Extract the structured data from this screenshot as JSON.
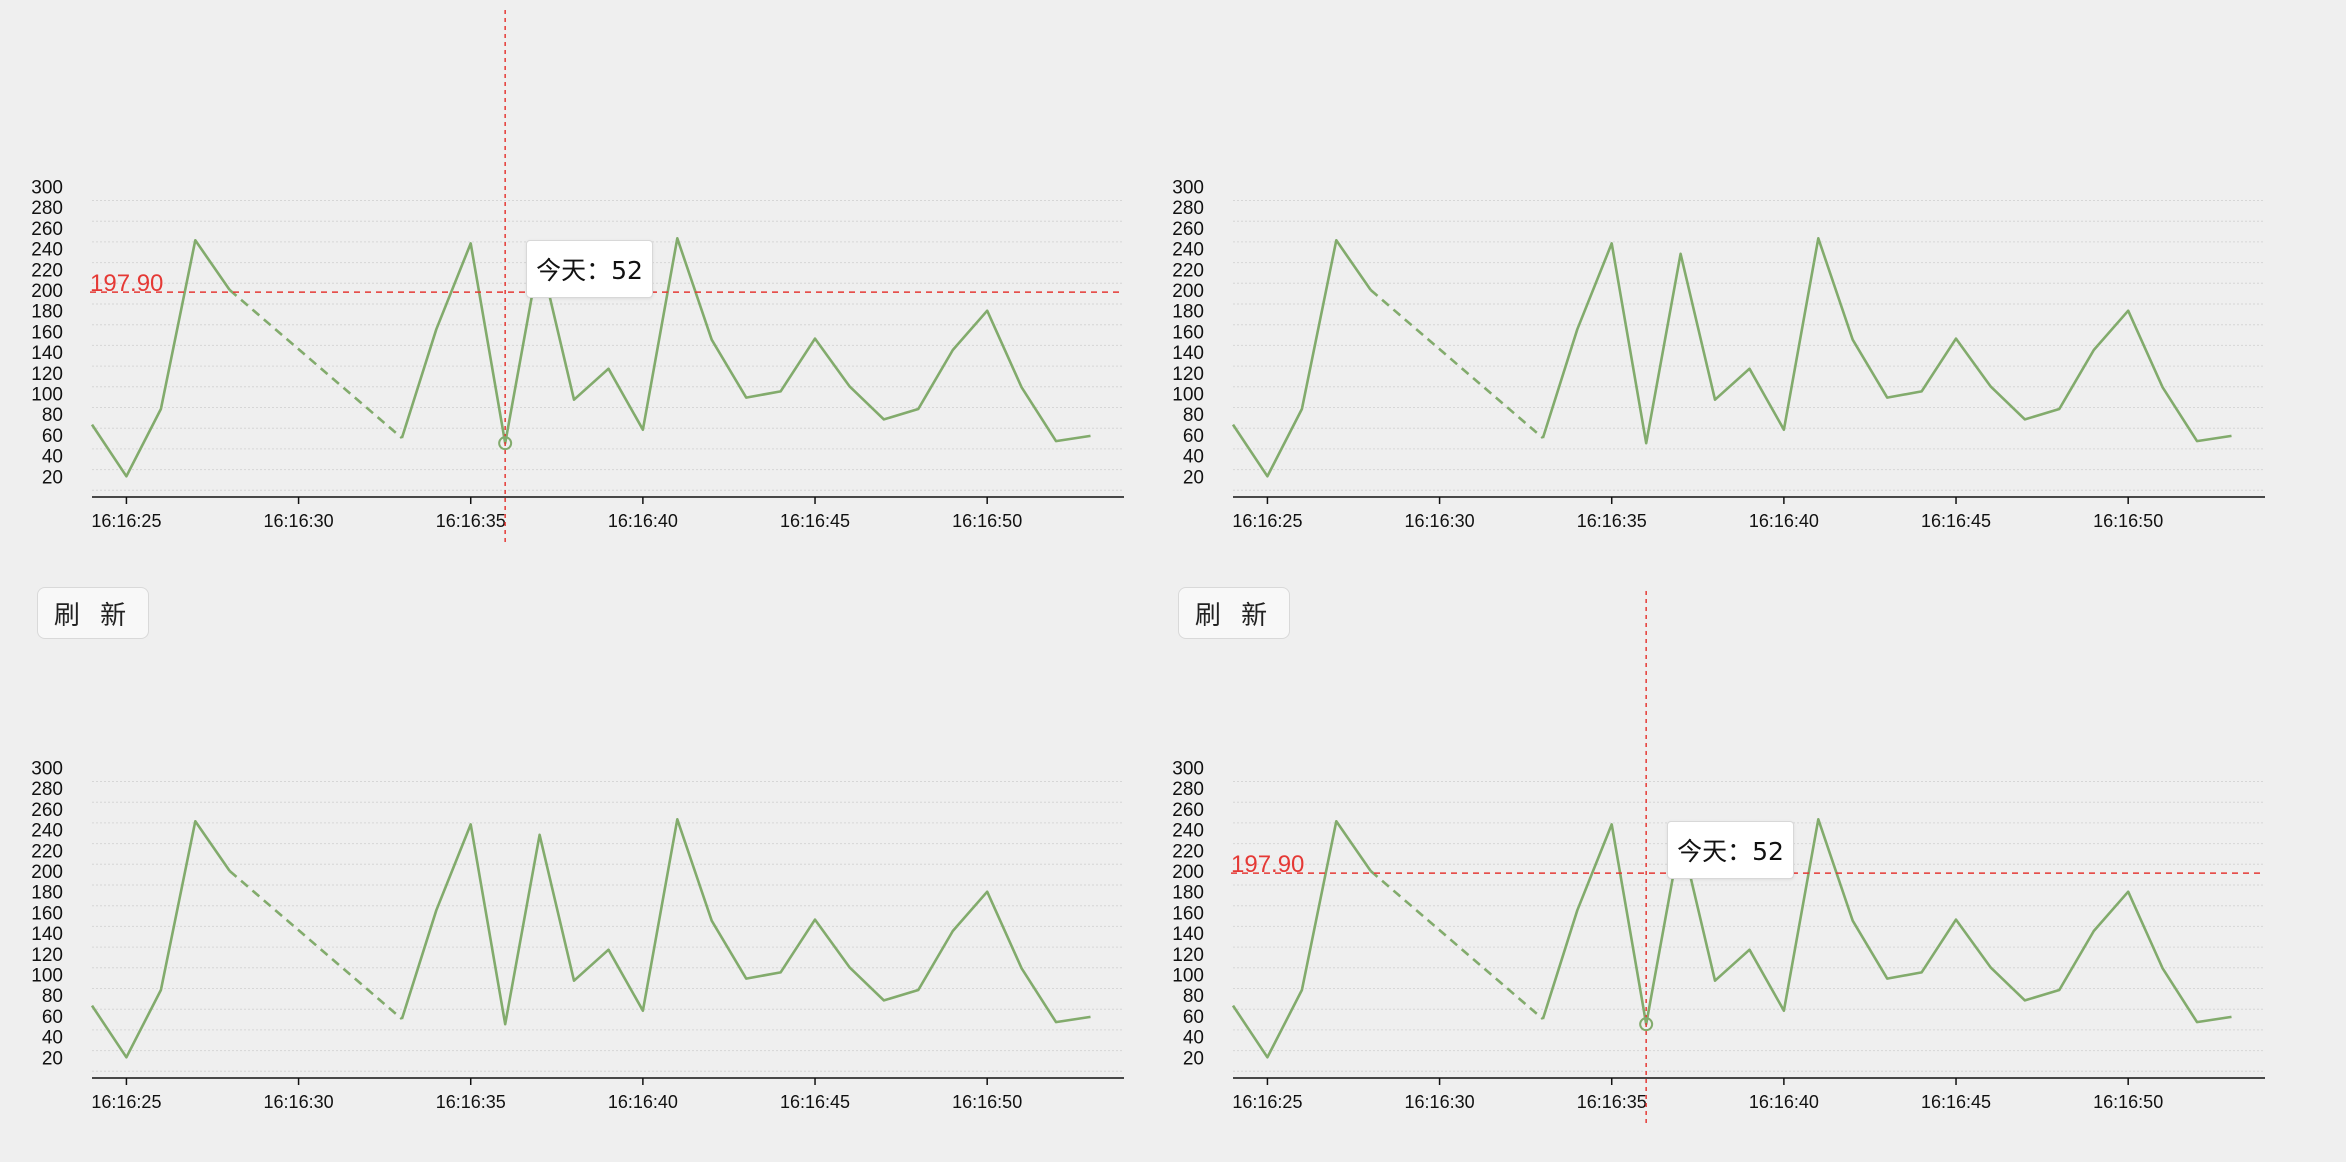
{
  "refresh_label": "刷 新",
  "colors": {
    "line": "#82ab6c",
    "reference": "#e53935",
    "grid": "#d6d6d6",
    "axis": "#111111"
  },
  "chart_data": [
    {
      "type": "line",
      "panel": "top-left",
      "x": [
        "16:16:24",
        "16:16:25",
        "16:16:26",
        "16:16:27",
        "16:16:28",
        "16:16:33",
        "16:16:34",
        "16:16:35",
        "16:16:36",
        "16:16:37",
        "16:16:38",
        "16:16:39",
        "16:16:40",
        "16:16:41",
        "16:16:42",
        "16:16:43",
        "16:16:44",
        "16:16:45",
        "16:16:46",
        "16:16:47",
        "16:16:48",
        "16:16:49",
        "16:16:50",
        "16:16:51",
        "16:16:52",
        "16:16:53"
      ],
      "series": [
        {
          "values": [
            70,
            20,
            85,
            248,
            200,
            57,
            162,
            245,
            52,
            235,
            94,
            124,
            65,
            250,
            152,
            96,
            102,
            153,
            107,
            75,
            85,
            142,
            180,
            106,
            54,
            59
          ],
          "dashed_gap": {
            "from": "16:16:28",
            "to": "16:16:33"
          }
        }
      ],
      "xticks": [
        "16:16:25",
        "16:16:30",
        "16:16:35",
        "16:16:40",
        "16:16:45",
        "16:16:50"
      ],
      "yticks": [
        20,
        40,
        60,
        80,
        100,
        120,
        140,
        160,
        180,
        200,
        220,
        240,
        260,
        280,
        300
      ],
      "ylim": [
        0,
        310
      ],
      "grid": true,
      "show_refresh_button": false,
      "reference_line": {
        "value": 197.9,
        "label": "197.90"
      },
      "crosshair_at": "16:16:36",
      "tooltip": {
        "text": "今天：52"
      }
    },
    {
      "type": "line",
      "panel": "top-right",
      "x": [
        "16:16:24",
        "16:16:25",
        "16:16:26",
        "16:16:27",
        "16:16:28",
        "16:16:33",
        "16:16:34",
        "16:16:35",
        "16:16:36",
        "16:16:37",
        "16:16:38",
        "16:16:39",
        "16:16:40",
        "16:16:41",
        "16:16:42",
        "16:16:43",
        "16:16:44",
        "16:16:45",
        "16:16:46",
        "16:16:47",
        "16:16:48",
        "16:16:49",
        "16:16:50",
        "16:16:51",
        "16:16:52",
        "16:16:53"
      ],
      "series": [
        {
          "values": [
            70,
            20,
            85,
            248,
            200,
            57,
            162,
            245,
            52,
            235,
            94,
            124,
            65,
            250,
            152,
            96,
            102,
            153,
            107,
            75,
            85,
            142,
            180,
            106,
            54,
            59
          ],
          "dashed_gap": {
            "from": "16:16:28",
            "to": "16:16:33"
          }
        }
      ],
      "xticks": [
        "16:16:25",
        "16:16:30",
        "16:16:35",
        "16:16:40",
        "16:16:45",
        "16:16:50"
      ],
      "yticks": [
        20,
        40,
        60,
        80,
        100,
        120,
        140,
        160,
        180,
        200,
        220,
        240,
        260,
        280,
        300
      ],
      "ylim": [
        0,
        310
      ],
      "grid": true,
      "show_refresh_button": false
    },
    {
      "type": "line",
      "panel": "bottom-left",
      "x": [
        "16:16:24",
        "16:16:25",
        "16:16:26",
        "16:16:27",
        "16:16:28",
        "16:16:33",
        "16:16:34",
        "16:16:35",
        "16:16:36",
        "16:16:37",
        "16:16:38",
        "16:16:39",
        "16:16:40",
        "16:16:41",
        "16:16:42",
        "16:16:43",
        "16:16:44",
        "16:16:45",
        "16:16:46",
        "16:16:47",
        "16:16:48",
        "16:16:49",
        "16:16:50",
        "16:16:51",
        "16:16:52",
        "16:16:53"
      ],
      "series": [
        {
          "values": [
            70,
            20,
            85,
            248,
            200,
            57,
            162,
            245,
            52,
            235,
            94,
            124,
            65,
            250,
            152,
            96,
            102,
            153,
            107,
            75,
            85,
            142,
            180,
            106,
            54,
            59
          ],
          "dashed_gap": {
            "from": "16:16:28",
            "to": "16:16:33"
          }
        }
      ],
      "xticks": [
        "16:16:25",
        "16:16:30",
        "16:16:35",
        "16:16:40",
        "16:16:45",
        "16:16:50"
      ],
      "yticks": [
        20,
        40,
        60,
        80,
        100,
        120,
        140,
        160,
        180,
        200,
        220,
        240,
        260,
        280,
        300
      ],
      "ylim": [
        0,
        310
      ],
      "grid": true,
      "show_refresh_button": true
    },
    {
      "type": "line",
      "panel": "bottom-right",
      "x": [
        "16:16:24",
        "16:16:25",
        "16:16:26",
        "16:16:27",
        "16:16:28",
        "16:16:33",
        "16:16:34",
        "16:16:35",
        "16:16:36",
        "16:16:37",
        "16:16:38",
        "16:16:39",
        "16:16:40",
        "16:16:41",
        "16:16:42",
        "16:16:43",
        "16:16:44",
        "16:16:45",
        "16:16:46",
        "16:16:47",
        "16:16:48",
        "16:16:49",
        "16:16:50",
        "16:16:51",
        "16:16:52",
        "16:16:53"
      ],
      "series": [
        {
          "values": [
            70,
            20,
            85,
            248,
            200,
            57,
            162,
            245,
            52,
            235,
            94,
            124,
            65,
            250,
            152,
            96,
            102,
            153,
            107,
            75,
            85,
            142,
            180,
            106,
            54,
            59
          ],
          "dashed_gap": {
            "from": "16:16:28",
            "to": "16:16:33"
          }
        }
      ],
      "xticks": [
        "16:16:25",
        "16:16:30",
        "16:16:35",
        "16:16:40",
        "16:16:45",
        "16:16:50"
      ],
      "yticks": [
        20,
        40,
        60,
        80,
        100,
        120,
        140,
        160,
        180,
        200,
        220,
        240,
        260,
        280,
        300
      ],
      "ylim": [
        0,
        310
      ],
      "grid": true,
      "show_refresh_button": true,
      "reference_line": {
        "value": 197.9,
        "label": "197.90"
      },
      "crosshair_at": "16:16:36",
      "tooltip": {
        "text": "今天：52"
      }
    }
  ]
}
